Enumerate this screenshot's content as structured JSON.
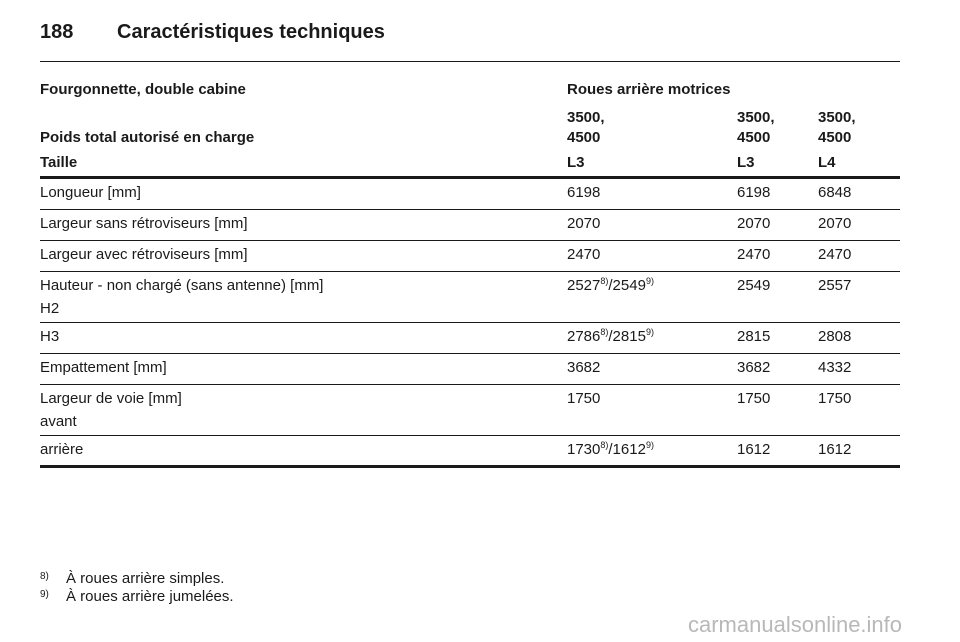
{
  "header": {
    "page": "188",
    "title": "Caractéristiques techniques"
  },
  "table": {
    "head": {
      "vehicle": "Fourgonnette, double cabine",
      "drive": "Roues arrière motrices",
      "weight_label": "Poids total autorisé en charge",
      "weights": [
        [
          "3500,",
          "4500"
        ],
        [
          "3500,",
          "4500"
        ],
        [
          "3500,",
          "4500"
        ]
      ],
      "size_label": "Taille",
      "sizes": [
        "L3",
        "L3",
        "L4"
      ]
    },
    "rows": [
      {
        "label": [
          "Longueur [mm]"
        ],
        "cells": [
          "6198",
          "6198",
          "6848"
        ]
      },
      {
        "label": [
          "Largeur sans rétroviseurs [mm]"
        ],
        "cells": [
          "2070",
          "2070",
          "2070"
        ]
      },
      {
        "label": [
          "Largeur avec rétroviseurs [mm]"
        ],
        "cells": [
          "2470",
          "2470",
          "2470"
        ]
      },
      {
        "label": [
          "Hauteur - non chargé (sans antenne) [mm]",
          "H2"
        ],
        "cells": [
          [
            "2527",
            "8)",
            "/2549",
            "9)"
          ],
          "2549",
          "2557"
        ]
      },
      {
        "label": [
          "H3"
        ],
        "cells": [
          [
            "2786",
            "8)",
            "/2815",
            "9)"
          ],
          "2815",
          "2808"
        ]
      },
      {
        "label": [
          "Empattement [mm]"
        ],
        "cells": [
          "3682",
          "3682",
          "4332"
        ]
      },
      {
        "label": [
          "Largeur de voie [mm]",
          "avant"
        ],
        "cells": [
          "1750",
          "1750",
          "1750"
        ]
      },
      {
        "label": [
          "arrière"
        ],
        "cells": [
          [
            "1730",
            "8)",
            "/1612",
            "9)"
          ],
          "1612",
          "1612"
        ]
      }
    ]
  },
  "footnotes": [
    {
      "mark": "8)",
      "text": "À roues arrière simples."
    },
    {
      "mark": "9)",
      "text": "À roues arrière jumelées."
    }
  ],
  "watermark": "carmanualsonline.info"
}
